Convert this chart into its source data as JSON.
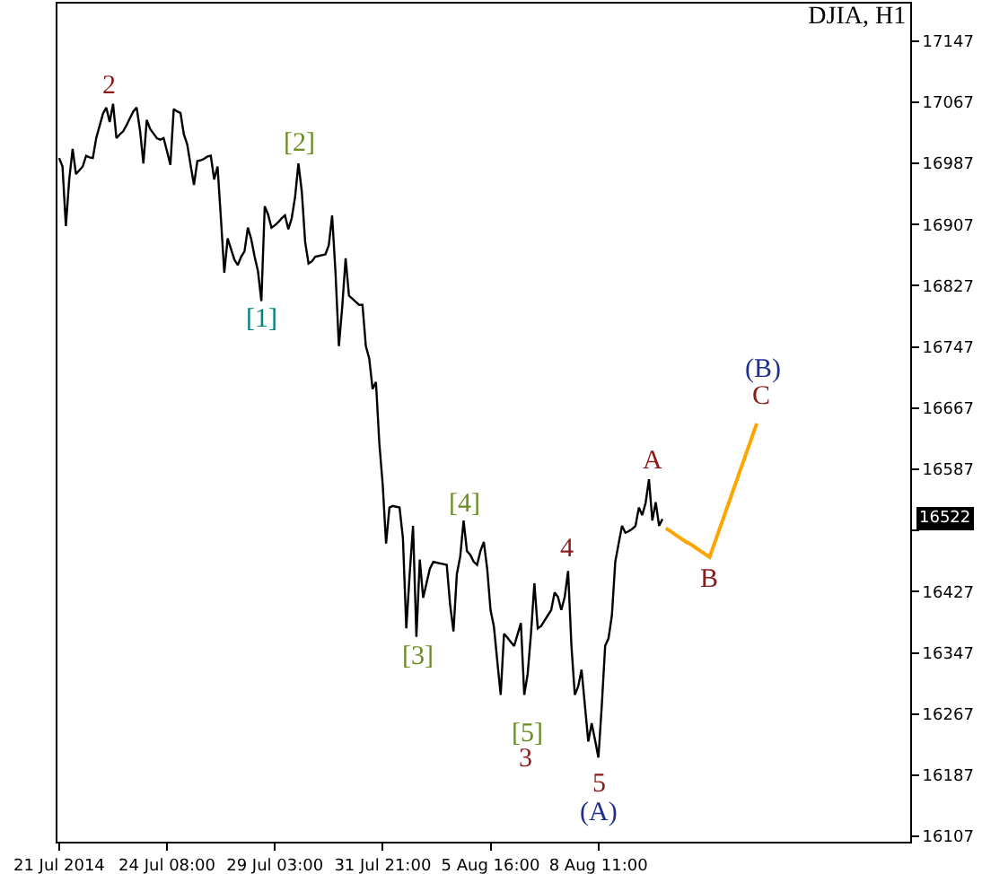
{
  "chart_data": {
    "type": "line",
    "title": "DJIA, H1",
    "categories": [
      "21 Jul 2014",
      null,
      null,
      null,
      null,
      null,
      null,
      null,
      null,
      null,
      null,
      null,
      null,
      null,
      null,
      null,
      null,
      null,
      null,
      null,
      null,
      null,
      null,
      null,
      null,
      null,
      null,
      null,
      null,
      null,
      null,
      null,
      "24 Jul 08:00",
      null,
      null,
      null,
      null,
      null,
      null,
      null,
      null,
      null,
      null,
      null,
      null,
      null,
      null,
      null,
      null,
      null,
      null,
      null,
      null,
      null,
      null,
      null,
      null,
      null,
      null,
      null,
      null,
      null,
      null,
      null,
      "29 Jul 03:00",
      null,
      null,
      null,
      null,
      null,
      null,
      null,
      null,
      null,
      null,
      null,
      null,
      null,
      null,
      null,
      null,
      null,
      null,
      null,
      null,
      null,
      null,
      null,
      null,
      null,
      null,
      null,
      null,
      null,
      null,
      null,
      "31 Jul 21:00",
      null,
      null,
      null,
      null,
      null,
      null,
      null,
      null,
      null,
      null,
      null,
      null,
      null,
      null,
      null,
      null,
      null,
      null,
      null,
      null,
      null,
      null,
      null,
      null,
      null,
      null,
      null,
      null,
      null,
      null,
      null,
      "5 Aug 16:00",
      null,
      null,
      null,
      null,
      null,
      null,
      null,
      null,
      null,
      null,
      null,
      null,
      null,
      null,
      null,
      null,
      null,
      null,
      null,
      null,
      null,
      null,
      null,
      null,
      null,
      null,
      null,
      null,
      null,
      null,
      null,
      "8 Aug 11:00",
      null,
      null,
      null,
      null,
      null,
      null,
      null,
      null,
      null,
      null,
      null,
      null,
      null,
      null,
      null,
      null,
      null,
      null,
      null,
      null,
      null,
      null,
      null,
      null,
      null,
      null,
      null,
      null,
      null,
      null,
      null,
      null,
      null,
      null,
      null,
      null,
      null,
      null,
      null,
      null,
      null,
      null,
      null,
      null,
      null,
      null,
      null,
      null,
      null,
      null,
      null,
      null,
      null,
      null,
      null,
      null,
      null,
      null,
      null,
      null,
      null,
      null,
      null,
      null,
      null,
      null,
      null,
      null,
      null,
      null,
      null,
      null,
      null,
      null,
      null,
      null,
      null,
      null,
      null,
      null,
      null,
      null,
      null,
      null,
      null,
      null,
      null,
      null,
      null,
      null,
      null,
      null
    ],
    "series": [
      {
        "color": "#000000",
        "values": [
          16994,
          16983,
          16905,
          16966,
          17006,
          16973,
          16978,
          16983,
          16997,
          16995,
          16994,
          17020,
          17036,
          17052,
          17060,
          17041,
          17065,
          17020,
          17025,
          17029,
          17037,
          17046,
          17055,
          17060,
          17030,
          16987,
          17044,
          17032,
          17026,
          17020,
          17018,
          17020,
          17003,
          16985,
          17058,
          17055,
          17053,
          17025,
          17012,
          16985,
          16959,
          16990,
          16991,
          16993,
          16996,
          16997,
          16966,
          16983,
          16915,
          16844,
          16889,
          16875,
          16861,
          16854,
          16865,
          16872,
          16903,
          16888,
          16865,
          16846,
          16807,
          16931,
          16920,
          16903,
          16906,
          16910,
          16915,
          16919,
          16901,
          16915,
          16943,
          16987,
          16950,
          16884,
          16856,
          16859,
          16865,
          16866,
          16867,
          16868,
          16880,
          16919,
          16844,
          16748,
          16800,
          16863,
          16814,
          16810,
          16806,
          16802,
          16802,
          16748,
          16732,
          16692,
          16701,
          16621,
          16567,
          16490,
          16537,
          16539,
          16538,
          16537,
          16497,
          16379,
          16450,
          16513,
          16368,
          16469,
          16419,
          16438,
          16457,
          16466,
          16465,
          16464,
          16463,
          16462,
          16410,
          16375,
          16450,
          16473,
          16520,
          16480,
          16475,
          16466,
          16462,
          16480,
          16492,
          16457,
          16403,
          16381,
          16336,
          16292,
          16372,
          16367,
          16361,
          16356,
          16371,
          16386,
          16292,
          16319,
          16372,
          16438,
          16379,
          16382,
          16389,
          16396,
          16403,
          16426,
          16420,
          16403,
          16420,
          16454,
          16356,
          16292,
          16303,
          16325,
          16278,
          16231,
          16255,
          16233,
          16210,
          16278,
          16356,
          16366,
          16396,
          16466,
          16490,
          16513,
          16504,
          16506,
          16509,
          16513,
          16537,
          16527,
          16543,
          16574,
          16520,
          16544,
          16513,
          16522,
          null,
          null,
          null,
          null,
          null,
          null,
          null,
          null,
          null,
          null,
          null,
          null,
          null,
          null,
          null,
          null,
          null,
          null,
          null,
          null,
          null,
          null,
          null,
          null,
          null,
          null,
          null,
          null,
          null,
          null,
          null,
          null,
          null,
          null,
          null,
          null,
          null,
          null,
          null,
          null,
          null,
          null,
          null,
          null,
          null,
          null,
          null,
          null,
          null,
          null,
          null,
          null,
          null,
          null,
          null,
          null,
          null,
          null,
          null,
          null,
          null,
          null,
          null,
          null,
          null,
          null,
          null,
          null,
          null,
          null,
          null,
          null,
          null
        ]
      },
      {
        "type": "line",
        "color": "#ffa500",
        "values": [
          null,
          null,
          null,
          null,
          null,
          null,
          null,
          null,
          null,
          null,
          null,
          null,
          null,
          null,
          null,
          null,
          null,
          null,
          null,
          null,
          null,
          null,
          null,
          null,
          null,
          null,
          null,
          null,
          null,
          null,
          null,
          null,
          null,
          null,
          null,
          null,
          null,
          null,
          null,
          null,
          null,
          null,
          null,
          null,
          null,
          null,
          null,
          null,
          null,
          null,
          null,
          null,
          null,
          null,
          null,
          null,
          null,
          null,
          null,
          null,
          null,
          null,
          null,
          null,
          null,
          null,
          null,
          null,
          null,
          null,
          null,
          null,
          null,
          null,
          null,
          null,
          null,
          null,
          null,
          null,
          null,
          null,
          null,
          null,
          null,
          null,
          null,
          null,
          null,
          null,
          null,
          null,
          null,
          null,
          null,
          null,
          null,
          null,
          null,
          null,
          null,
          null,
          null,
          null,
          null,
          null,
          null,
          null,
          null,
          null,
          null,
          null,
          null,
          null,
          null,
          null,
          null,
          null,
          null,
          null,
          null,
          null,
          null,
          null,
          null,
          null,
          null,
          null,
          null,
          null,
          null,
          null,
          null,
          null,
          null,
          null,
          null,
          null,
          null,
          null,
          null,
          null,
          null,
          null,
          null,
          null,
          null,
          null,
          null,
          null,
          null,
          null,
          null,
          null,
          null,
          null,
          null,
          null,
          null,
          null,
          null,
          null,
          null,
          null,
          null,
          null,
          null,
          null,
          null,
          null,
          null,
          null,
          null,
          null,
          null,
          null,
          null,
          null,
          null,
          null,
          16510,
          16507,
          16504,
          16501,
          16498,
          16495,
          16492,
          16490,
          16487,
          16484,
          16481,
          16478,
          16475,
          16472,
          16485,
          16497,
          16510,
          16522,
          16535,
          16547,
          16560,
          16572,
          16585,
          16597,
          16610,
          16622,
          16635,
          16647,
          null,
          null,
          null,
          null,
          null,
          null,
          null,
          null,
          null,
          null,
          null,
          null,
          null,
          null,
          null,
          null,
          null,
          null,
          null,
          null,
          null,
          null,
          null,
          null,
          null,
          null,
          null,
          null,
          null,
          null,
          null,
          null,
          null,
          null,
          null,
          null,
          null,
          null,
          null,
          null,
          null,
          null,
          null,
          null,
          null
        ]
      }
    ],
    "ylim": [
      16100,
      17196
    ],
    "yticks": [
      17147,
      17067,
      16987,
      16907,
      16827,
      16747,
      16667,
      16587,
      {
        "value": 16507,
        "label": null
      },
      16427,
      16347,
      16267,
      16187,
      16107
    ],
    "annotations": [
      "2",
      "[2]",
      "[1]",
      "[4]",
      "[3]",
      "4",
      "[5]",
      "3",
      "5",
      "(A)",
      "A",
      "B",
      "C",
      "(B)",
      {
        "text": "16522",
        "y": 16522
      }
    ]
  }
}
